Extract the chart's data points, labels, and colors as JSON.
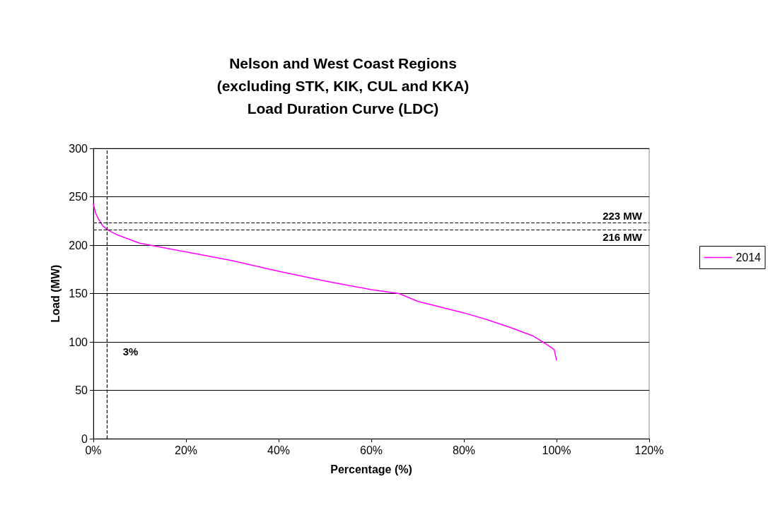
{
  "chart_data": {
    "type": "line",
    "title": "Nelson and West Coast Regions\n(excluding STK, KIK, CUL and KKA)\nLoad Duration Curve (LDC)",
    "xlabel": "Percentage (%)",
    "ylabel": "Load (MW)",
    "x": [
      0,
      0.5,
      1,
      2,
      3,
      5,
      10,
      20,
      30,
      40,
      50,
      60,
      66,
      70,
      75,
      80,
      85,
      90,
      95,
      97,
      98,
      99.5,
      100
    ],
    "series": [
      {
        "name": "2014",
        "color": "#ff00ff",
        "values": [
          243,
          233,
          228,
          220,
          216,
          211,
          202,
          193,
          184,
          173,
          163,
          154,
          150,
          142,
          136,
          130,
          123,
          115,
          106,
          100,
          97,
          92,
          81
        ]
      }
    ],
    "xlim": [
      0,
      120
    ],
    "xticks": [
      {
        "value": 0,
        "label": "0%"
      },
      {
        "value": 20,
        "label": "20%"
      },
      {
        "value": 40,
        "label": "40%"
      },
      {
        "value": 60,
        "label": "60%"
      },
      {
        "value": 80,
        "label": "80%"
      },
      {
        "value": 100,
        "label": "100%"
      },
      {
        "value": 120,
        "label": "120%"
      }
    ],
    "ylim": [
      0,
      300
    ],
    "yticks": [
      0,
      50,
      100,
      150,
      200,
      250,
      300
    ],
    "grid": "y",
    "legend": "right",
    "marker": "none",
    "line_style": "solid",
    "ref_lines": [
      {
        "axis": "y",
        "value": 223,
        "label": "223 MW",
        "color": "#000000",
        "line_style": "dashed"
      },
      {
        "axis": "y",
        "value": 216,
        "label": "216 MW",
        "color": "#000000",
        "line_style": "dashed"
      },
      {
        "axis": "x",
        "value": 3,
        "label": "3%",
        "color": "#000000",
        "line_style": "dashed"
      }
    ]
  }
}
